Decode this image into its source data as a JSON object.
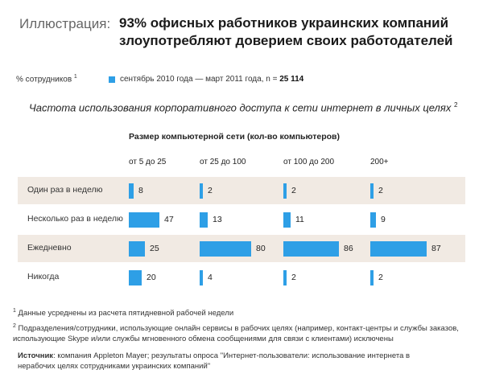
{
  "header": {
    "label": "Иллюстрация:",
    "title_line1": "93% офисных работников украинских компаний",
    "title_line2": "злоупотребляют доверием своих работодателей"
  },
  "units": {
    "text": "% сотрудников",
    "note_mark": "1"
  },
  "legend": {
    "text": "сентябрь 2010 года — март 2011 года, n = ",
    "n_value": "25 114",
    "color": "#2e9fe6"
  },
  "chart_data": {
    "type": "bar",
    "title": "Частота использования корпоративного доступа к сети интернет в личных целях",
    "title_note_mark": "2",
    "column_group_label": "Размер компьютерной сети (кол-во компьютеров)",
    "columns": [
      "от 5 до 25",
      "от 25 до 100",
      "от 100 до 200",
      "200+"
    ],
    "categories": [
      "Один  раз в неделю",
      "Несколько раз в неделю",
      "Ежедневно",
      "Никогда"
    ],
    "series": [
      {
        "name": "от 5 до 25",
        "values": [
          8,
          47,
          25,
          20
        ]
      },
      {
        "name": "от 25 до 100",
        "values": [
          2,
          13,
          80,
          4
        ]
      },
      {
        "name": "от 100 до 200",
        "values": [
          2,
          11,
          86,
          2
        ]
      },
      {
        "name": "200+",
        "values": [
          2,
          9,
          87,
          2
        ]
      }
    ],
    "units": "%",
    "bar_color": "#2e9fe6",
    "band_color": "#f1eae3"
  },
  "footnotes": {
    "fn1_mark": "1",
    "fn1": "Данные усреднены из расчета пятидневной рабочей недели",
    "fn2_mark": "2",
    "fn2": "Подразделения/сотрудники, использующие онлайн сервисы в рабочих целях (например, контакт-центры и службы заказов, использующие Skype и/или службы мгновенного обмена сообщениями для связи с клиентами) исключены",
    "source_label": "Источник",
    "source": ": компания Appleton Mayer; результаты опроса \"Интернет-пользователи: использование интернета в нерабочих целях сотрудниками украинских компаний\""
  }
}
